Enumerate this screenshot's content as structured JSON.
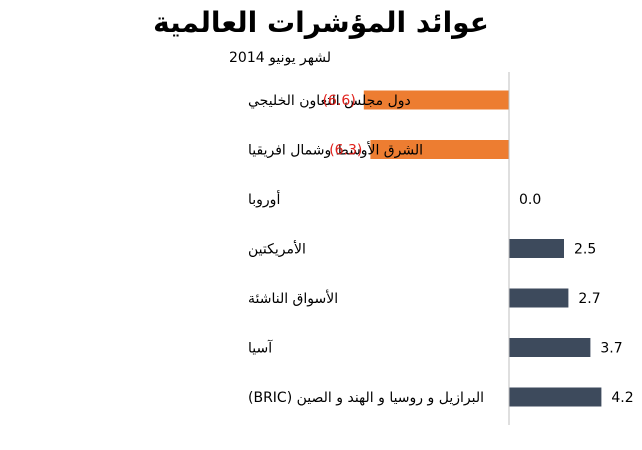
{
  "title": "عوائد المؤشرات العالمية",
  "subtitle": "لشهر يونيو 2014",
  "colors": {
    "negative": "#ED7D31",
    "positive": "#3D4A5C",
    "neg_text": "#E0201B",
    "axis": "#BFBFBF"
  },
  "chart_data": {
    "type": "bar",
    "orientation": "horizontal",
    "title": "عوائد المؤشرات العالمية",
    "subtitle": "لشهر يونيو 2014",
    "categories": [
      "دول مجلس التعاون الخليجي",
      "الشرق الأوسط وشمال افريقيا",
      "أوروبا",
      "الأمريكتين",
      "الأسواق الناشئة",
      "آسيا",
      "البرازيل و روسيا و الهند و الصين (BRIC)"
    ],
    "values": [
      -6.6,
      -6.3,
      0.0,
      2.5,
      2.7,
      3.7,
      4.2
    ],
    "value_labels": [
      "(6.6)",
      "(6.3)",
      "0.0",
      "2.5",
      "2.7",
      "3.7",
      "4.2"
    ],
    "xlim": [
      -6.6,
      4.2
    ],
    "grid": false,
    "legend": "none"
  }
}
